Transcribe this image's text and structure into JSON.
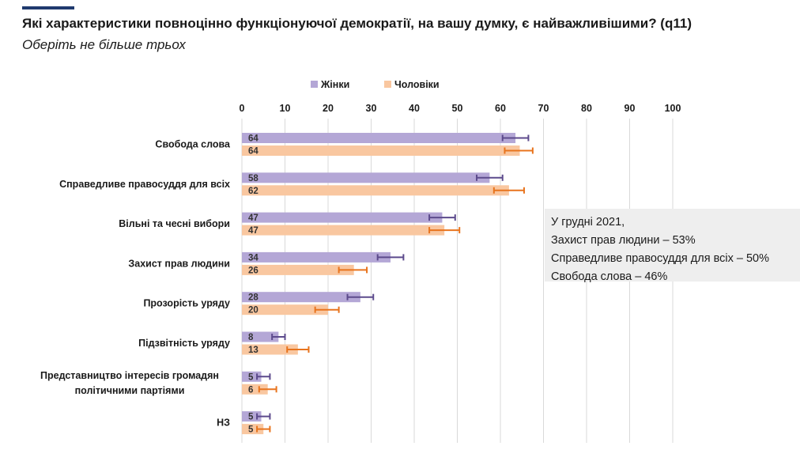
{
  "title": "Які характеристики повноцінно функціонуючої демократії, на вашу думку, є найважливішими? (q11)",
  "subtitle": "Оберіть не більше трьох",
  "note": {
    "lines": [
      "У грудні 2021,",
      "Захист прав людини – 53%",
      "Справедливе правосуддя для всіх – 50%",
      "Свобода слова – 46%"
    ]
  },
  "colors": {
    "female_bar": "#b4a7d6",
    "female_error": "#5c4a8c",
    "male_bar": "#f9c7a0",
    "male_error": "#e8741e",
    "title_rule": "#1f3a6e",
    "grid": "#d9d9d9"
  },
  "chart_data": {
    "type": "bar",
    "orientation": "horizontal",
    "xlim": [
      0,
      100
    ],
    "xticks": [
      "0",
      "10",
      "20",
      "30",
      "40",
      "50",
      "60",
      "70",
      "80",
      "90",
      "100"
    ],
    "grid": true,
    "legend_position": "top",
    "categories": [
      [
        "Свобода слова"
      ],
      [
        "Справедливе правосуддя для всіх"
      ],
      [
        "Вільні та чесні вибори"
      ],
      [
        "Захист прав людини"
      ],
      [
        "Прозорість уряду"
      ],
      [
        "Підзвітність уряду"
      ],
      [
        "Представництво інтересів громадян",
        "політичними партіями"
      ],
      [
        "НЗ"
      ]
    ],
    "series": [
      {
        "name": "Жінки",
        "values": [
          63.5,
          57.5,
          46.5,
          34.5,
          27.5,
          8.5,
          4.5,
          4.5
        ],
        "labels": [
          "64",
          "58",
          "47",
          "34",
          "28",
          "8",
          "5",
          "5"
        ],
        "error_low": [
          60.5,
          54.5,
          43.5,
          31.5,
          24.5,
          7,
          3.5,
          3.5
        ],
        "error_high": [
          66.5,
          60.5,
          49.5,
          37.5,
          30.5,
          10,
          6.5,
          6.5
        ]
      },
      {
        "name": "Чоловіки",
        "values": [
          64.5,
          62,
          47,
          26,
          20,
          13,
          6,
          5
        ],
        "labels": [
          "64",
          "62",
          "47",
          "26",
          "20",
          "13",
          "6",
          "5"
        ],
        "error_low": [
          61,
          58.5,
          43.5,
          22.5,
          17,
          10.5,
          4,
          3.5
        ],
        "error_high": [
          67.5,
          65.5,
          50.5,
          29,
          22.5,
          15.5,
          8,
          6.5
        ]
      }
    ]
  }
}
